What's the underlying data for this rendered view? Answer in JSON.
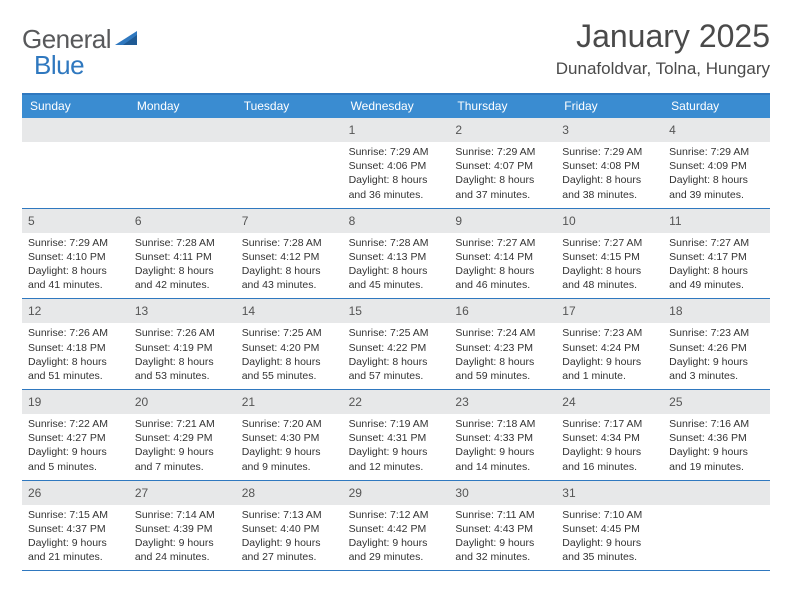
{
  "logo": {
    "brand_a": "General",
    "brand_b": "Blue"
  },
  "header": {
    "month_title": "January 2025",
    "location": "Dunafoldvar, Tolna, Hungary"
  },
  "colors": {
    "header_bar": "#3a8cd1",
    "top_rule": "#2f78bf",
    "row_rule": "#2f78bf",
    "daynum_bg": "#e7e8e9",
    "text": "#333333",
    "logo_gray": "#58595b",
    "logo_blue": "#2f78bf"
  },
  "day_headers": [
    "Sunday",
    "Monday",
    "Tuesday",
    "Wednesday",
    "Thursday",
    "Friday",
    "Saturday"
  ],
  "weeks": [
    [
      null,
      null,
      null,
      {
        "n": "1",
        "sr": "Sunrise: 7:29 AM",
        "ss": "Sunset: 4:06 PM",
        "d1": "Daylight: 8 hours",
        "d2": "and 36 minutes."
      },
      {
        "n": "2",
        "sr": "Sunrise: 7:29 AM",
        "ss": "Sunset: 4:07 PM",
        "d1": "Daylight: 8 hours",
        "d2": "and 37 minutes."
      },
      {
        "n": "3",
        "sr": "Sunrise: 7:29 AM",
        "ss": "Sunset: 4:08 PM",
        "d1": "Daylight: 8 hours",
        "d2": "and 38 minutes."
      },
      {
        "n": "4",
        "sr": "Sunrise: 7:29 AM",
        "ss": "Sunset: 4:09 PM",
        "d1": "Daylight: 8 hours",
        "d2": "and 39 minutes."
      }
    ],
    [
      {
        "n": "5",
        "sr": "Sunrise: 7:29 AM",
        "ss": "Sunset: 4:10 PM",
        "d1": "Daylight: 8 hours",
        "d2": "and 41 minutes."
      },
      {
        "n": "6",
        "sr": "Sunrise: 7:28 AM",
        "ss": "Sunset: 4:11 PM",
        "d1": "Daylight: 8 hours",
        "d2": "and 42 minutes."
      },
      {
        "n": "7",
        "sr": "Sunrise: 7:28 AM",
        "ss": "Sunset: 4:12 PM",
        "d1": "Daylight: 8 hours",
        "d2": "and 43 minutes."
      },
      {
        "n": "8",
        "sr": "Sunrise: 7:28 AM",
        "ss": "Sunset: 4:13 PM",
        "d1": "Daylight: 8 hours",
        "d2": "and 45 minutes."
      },
      {
        "n": "9",
        "sr": "Sunrise: 7:27 AM",
        "ss": "Sunset: 4:14 PM",
        "d1": "Daylight: 8 hours",
        "d2": "and 46 minutes."
      },
      {
        "n": "10",
        "sr": "Sunrise: 7:27 AM",
        "ss": "Sunset: 4:15 PM",
        "d1": "Daylight: 8 hours",
        "d2": "and 48 minutes."
      },
      {
        "n": "11",
        "sr": "Sunrise: 7:27 AM",
        "ss": "Sunset: 4:17 PM",
        "d1": "Daylight: 8 hours",
        "d2": "and 49 minutes."
      }
    ],
    [
      {
        "n": "12",
        "sr": "Sunrise: 7:26 AM",
        "ss": "Sunset: 4:18 PM",
        "d1": "Daylight: 8 hours",
        "d2": "and 51 minutes."
      },
      {
        "n": "13",
        "sr": "Sunrise: 7:26 AM",
        "ss": "Sunset: 4:19 PM",
        "d1": "Daylight: 8 hours",
        "d2": "and 53 minutes."
      },
      {
        "n": "14",
        "sr": "Sunrise: 7:25 AM",
        "ss": "Sunset: 4:20 PM",
        "d1": "Daylight: 8 hours",
        "d2": "and 55 minutes."
      },
      {
        "n": "15",
        "sr": "Sunrise: 7:25 AM",
        "ss": "Sunset: 4:22 PM",
        "d1": "Daylight: 8 hours",
        "d2": "and 57 minutes."
      },
      {
        "n": "16",
        "sr": "Sunrise: 7:24 AM",
        "ss": "Sunset: 4:23 PM",
        "d1": "Daylight: 8 hours",
        "d2": "and 59 minutes."
      },
      {
        "n": "17",
        "sr": "Sunrise: 7:23 AM",
        "ss": "Sunset: 4:24 PM",
        "d1": "Daylight: 9 hours",
        "d2": "and 1 minute."
      },
      {
        "n": "18",
        "sr": "Sunrise: 7:23 AM",
        "ss": "Sunset: 4:26 PM",
        "d1": "Daylight: 9 hours",
        "d2": "and 3 minutes."
      }
    ],
    [
      {
        "n": "19",
        "sr": "Sunrise: 7:22 AM",
        "ss": "Sunset: 4:27 PM",
        "d1": "Daylight: 9 hours",
        "d2": "and 5 minutes."
      },
      {
        "n": "20",
        "sr": "Sunrise: 7:21 AM",
        "ss": "Sunset: 4:29 PM",
        "d1": "Daylight: 9 hours",
        "d2": "and 7 minutes."
      },
      {
        "n": "21",
        "sr": "Sunrise: 7:20 AM",
        "ss": "Sunset: 4:30 PM",
        "d1": "Daylight: 9 hours",
        "d2": "and 9 minutes."
      },
      {
        "n": "22",
        "sr": "Sunrise: 7:19 AM",
        "ss": "Sunset: 4:31 PM",
        "d1": "Daylight: 9 hours",
        "d2": "and 12 minutes."
      },
      {
        "n": "23",
        "sr": "Sunrise: 7:18 AM",
        "ss": "Sunset: 4:33 PM",
        "d1": "Daylight: 9 hours",
        "d2": "and 14 minutes."
      },
      {
        "n": "24",
        "sr": "Sunrise: 7:17 AM",
        "ss": "Sunset: 4:34 PM",
        "d1": "Daylight: 9 hours",
        "d2": "and 16 minutes."
      },
      {
        "n": "25",
        "sr": "Sunrise: 7:16 AM",
        "ss": "Sunset: 4:36 PM",
        "d1": "Daylight: 9 hours",
        "d2": "and 19 minutes."
      }
    ],
    [
      {
        "n": "26",
        "sr": "Sunrise: 7:15 AM",
        "ss": "Sunset: 4:37 PM",
        "d1": "Daylight: 9 hours",
        "d2": "and 21 minutes."
      },
      {
        "n": "27",
        "sr": "Sunrise: 7:14 AM",
        "ss": "Sunset: 4:39 PM",
        "d1": "Daylight: 9 hours",
        "d2": "and 24 minutes."
      },
      {
        "n": "28",
        "sr": "Sunrise: 7:13 AM",
        "ss": "Sunset: 4:40 PM",
        "d1": "Daylight: 9 hours",
        "d2": "and 27 minutes."
      },
      {
        "n": "29",
        "sr": "Sunrise: 7:12 AM",
        "ss": "Sunset: 4:42 PM",
        "d1": "Daylight: 9 hours",
        "d2": "and 29 minutes."
      },
      {
        "n": "30",
        "sr": "Sunrise: 7:11 AM",
        "ss": "Sunset: 4:43 PM",
        "d1": "Daylight: 9 hours",
        "d2": "and 32 minutes."
      },
      {
        "n": "31",
        "sr": "Sunrise: 7:10 AM",
        "ss": "Sunset: 4:45 PM",
        "d1": "Daylight: 9 hours",
        "d2": "and 35 minutes."
      },
      null
    ]
  ]
}
